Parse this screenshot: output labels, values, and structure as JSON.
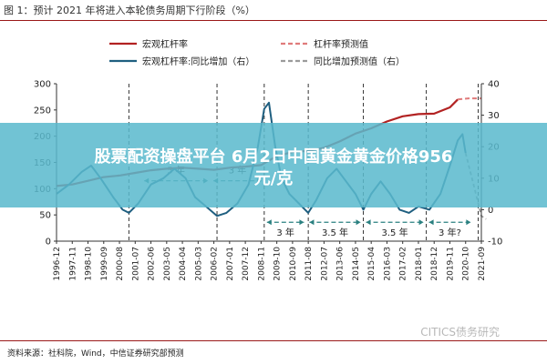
{
  "header": {
    "title": "图 1：预计 2021 年将进入本轮债务周期下行阶段（%）"
  },
  "overlay": {
    "line1": "股票配资操盘平台 6月2日中国黄金黄金价格956",
    "line2": "元/克"
  },
  "footer": {
    "source": "资料来源：社科院，Wind，中信证券研究部预测",
    "watermark": "CITICS债务研究"
  },
  "colors": {
    "leverage": "#b22222",
    "yoy": "#1f5f80",
    "forecast_leverage": "#e07b7b",
    "forecast_yoy": "#9a9a9a",
    "accent_rule": "#9a1818",
    "annotation": "#2a8080"
  },
  "chart_data": {
    "type": "line",
    "ylim_left": [
      0,
      300
    ],
    "ylim_right": [
      -10,
      40
    ],
    "yticks_left": [
      0,
      50,
      100,
      150,
      200,
      250,
      300
    ],
    "yticks_right": [
      -10,
      0,
      10,
      20,
      30,
      40
    ],
    "x_ticks": [
      "1996-12",
      "1997-11",
      "1998-10",
      "1999-09",
      "2000-08",
      "2001-07",
      "2002-06",
      "2003-05",
      "2004-04",
      "2005-03",
      "2006-02",
      "2007-01",
      "2007-12",
      "2008-11",
      "2009-10",
      "2010-09",
      "2011-08",
      "2012-07",
      "2013-06",
      "2014-05",
      "2015-04",
      "2016-03",
      "2017-02",
      "2018-01",
      "2018-12",
      "2019-11",
      "2020-10",
      "2021-09"
    ],
    "legend": [
      {
        "name": "宏观杠杆率",
        "style": "solid",
        "color": "#b22222"
      },
      {
        "name": "杠杆率预测值",
        "style": "dashed",
        "color": "#e07b7b"
      },
      {
        "name": "宏观杠杆率:同比增加（右）",
        "style": "solid",
        "color": "#1f5f80"
      },
      {
        "name": "同比增加预测值（右）",
        "style": "dashed",
        "color": "#9a9a9a"
      }
    ],
    "series": [
      {
        "name": "宏观杠杆率",
        "axis": "left",
        "points": [
          [
            0,
            105
          ],
          [
            1,
            108
          ],
          [
            2,
            115
          ],
          [
            3,
            122
          ],
          [
            4,
            125
          ],
          [
            5,
            130
          ],
          [
            6,
            135
          ],
          [
            7,
            138
          ],
          [
            8,
            140
          ],
          [
            9,
            138
          ],
          [
            10,
            136
          ],
          [
            11,
            140
          ],
          [
            12,
            142
          ],
          [
            13,
            145
          ],
          [
            14,
            162
          ],
          [
            15,
            170
          ],
          [
            16,
            172
          ],
          [
            17,
            178
          ],
          [
            18,
            190
          ],
          [
            19,
            205
          ],
          [
            20,
            215
          ],
          [
            21,
            228
          ],
          [
            22,
            238
          ],
          [
            23,
            242
          ],
          [
            24,
            243
          ],
          [
            25,
            255
          ],
          [
            25.5,
            270
          ]
        ]
      },
      {
        "name": "杠杆率预测值",
        "axis": "left",
        "points": [
          [
            25.5,
            270
          ],
          [
            26.2,
            272
          ],
          [
            27,
            272
          ]
        ]
      },
      {
        "name": "宏观杠杆率:同比增加（右）",
        "axis": "right",
        "points": [
          [
            0,
            5
          ],
          [
            0.8,
            8
          ],
          [
            1.6,
            12
          ],
          [
            2.2,
            14
          ],
          [
            2.8,
            10
          ],
          [
            3.6,
            4
          ],
          [
            4.2,
            0
          ],
          [
            4.6,
            -1
          ],
          [
            5.2,
            2
          ],
          [
            6.0,
            8
          ],
          [
            6.8,
            10
          ],
          [
            7.5,
            13
          ],
          [
            8.2,
            10
          ],
          [
            8.8,
            4
          ],
          [
            9.5,
            1
          ],
          [
            10.2,
            -2
          ],
          [
            10.8,
            -1
          ],
          [
            11.5,
            2
          ],
          [
            12.2,
            8
          ],
          [
            12.8,
            20
          ],
          [
            13.2,
            32
          ],
          [
            13.5,
            34
          ],
          [
            13.9,
            20
          ],
          [
            14.3,
            10
          ],
          [
            14.8,
            5
          ],
          [
            15.4,
            2
          ],
          [
            16,
            -1
          ],
          [
            16.5,
            3
          ],
          [
            17.2,
            10
          ],
          [
            17.8,
            13
          ],
          [
            18.4,
            9
          ],
          [
            19.0,
            5
          ],
          [
            19.5,
            0
          ],
          [
            20.0,
            5
          ],
          [
            20.6,
            9
          ],
          [
            21.2,
            5
          ],
          [
            21.8,
            0
          ],
          [
            22.4,
            -1
          ],
          [
            23,
            1
          ],
          [
            23.7,
            0
          ],
          [
            24.4,
            5
          ],
          [
            25,
            14
          ],
          [
            25.5,
            22
          ],
          [
            25.8,
            24
          ],
          [
            26.0,
            18
          ]
        ]
      },
      {
        "name": "同比增加预测值（右）",
        "axis": "right",
        "points": [
          [
            26.0,
            18
          ],
          [
            26.5,
            8
          ],
          [
            27,
            -2
          ],
          [
            27.3,
            -3
          ]
        ]
      }
    ],
    "annotations": [
      {
        "label": "5 年",
        "x": [
          5.4,
          9.8
        ],
        "axis": "left",
        "y": 115
      },
      {
        "label": "3 年",
        "x": [
          9.8,
          13.2
        ],
        "axis": "left",
        "y": 115
      },
      {
        "label": "3 年",
        "x": [
          13.2,
          15.9
        ],
        "axis": "right",
        "y": -4
      },
      {
        "label": "3.5 年",
        "x": [
          15.9,
          19.5
        ],
        "axis": "right",
        "y": -4
      },
      {
        "label": "3.5 年",
        "x": [
          19.5,
          23.5
        ],
        "axis": "right",
        "y": -4
      },
      {
        "label": "3 年?",
        "x": [
          23.5,
          26.5
        ],
        "axis": "right",
        "y": -4
      }
    ],
    "cycle_dividers_x": [
      4.6,
      10.2,
      13.2,
      16.0,
      19.5,
      23.5,
      26.8
    ]
  }
}
